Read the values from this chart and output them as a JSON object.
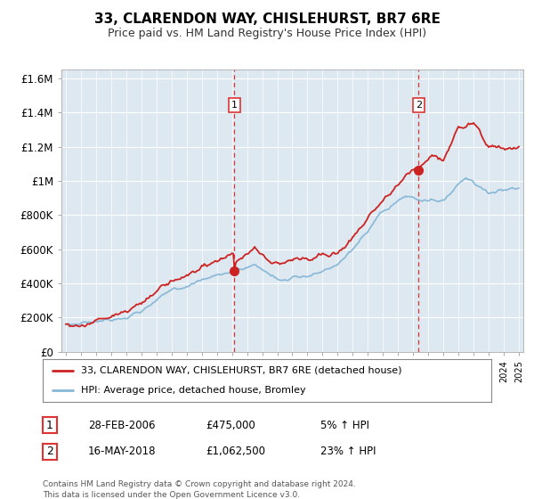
{
  "title": "33, CLARENDON WAY, CHISLEHURST, BR7 6RE",
  "subtitle": "Price paid vs. HM Land Registry's House Price Index (HPI)",
  "background_color": "#ffffff",
  "plot_bg_color": "#dde8f0",
  "ylim": [
    0,
    1650000
  ],
  "yticks": [
    0,
    200000,
    400000,
    600000,
    800000,
    1000000,
    1200000,
    1400000,
    1600000
  ],
  "ytick_labels": [
    "£0",
    "£200K",
    "£400K",
    "£600K",
    "£800K",
    "£1M",
    "£1.2M",
    "£1.4M",
    "£1.6M"
  ],
  "year_start": 1995,
  "year_end": 2025,
  "sale1_year": 2006.16,
  "sale1_price": 475000,
  "sale2_year": 2018.37,
  "sale2_price": 1062500,
  "legend_line1": "33, CLARENDON WAY, CHISLEHURST, BR7 6RE (detached house)",
  "legend_line2": "HPI: Average price, detached house, Bromley",
  "annotation1_date": "28-FEB-2006",
  "annotation1_price": "£475,000",
  "annotation1_hpi": "5% ↑ HPI",
  "annotation2_date": "16-MAY-2018",
  "annotation2_price": "£1,062,500",
  "annotation2_hpi": "23% ↑ HPI",
  "footer": "Contains HM Land Registry data © Crown copyright and database right 2024.\nThis data is licensed under the Open Government Licence v3.0.",
  "property_color": "#cc2222",
  "hpi_color": "#88b8d8",
  "vline_color": "#dd3333"
}
